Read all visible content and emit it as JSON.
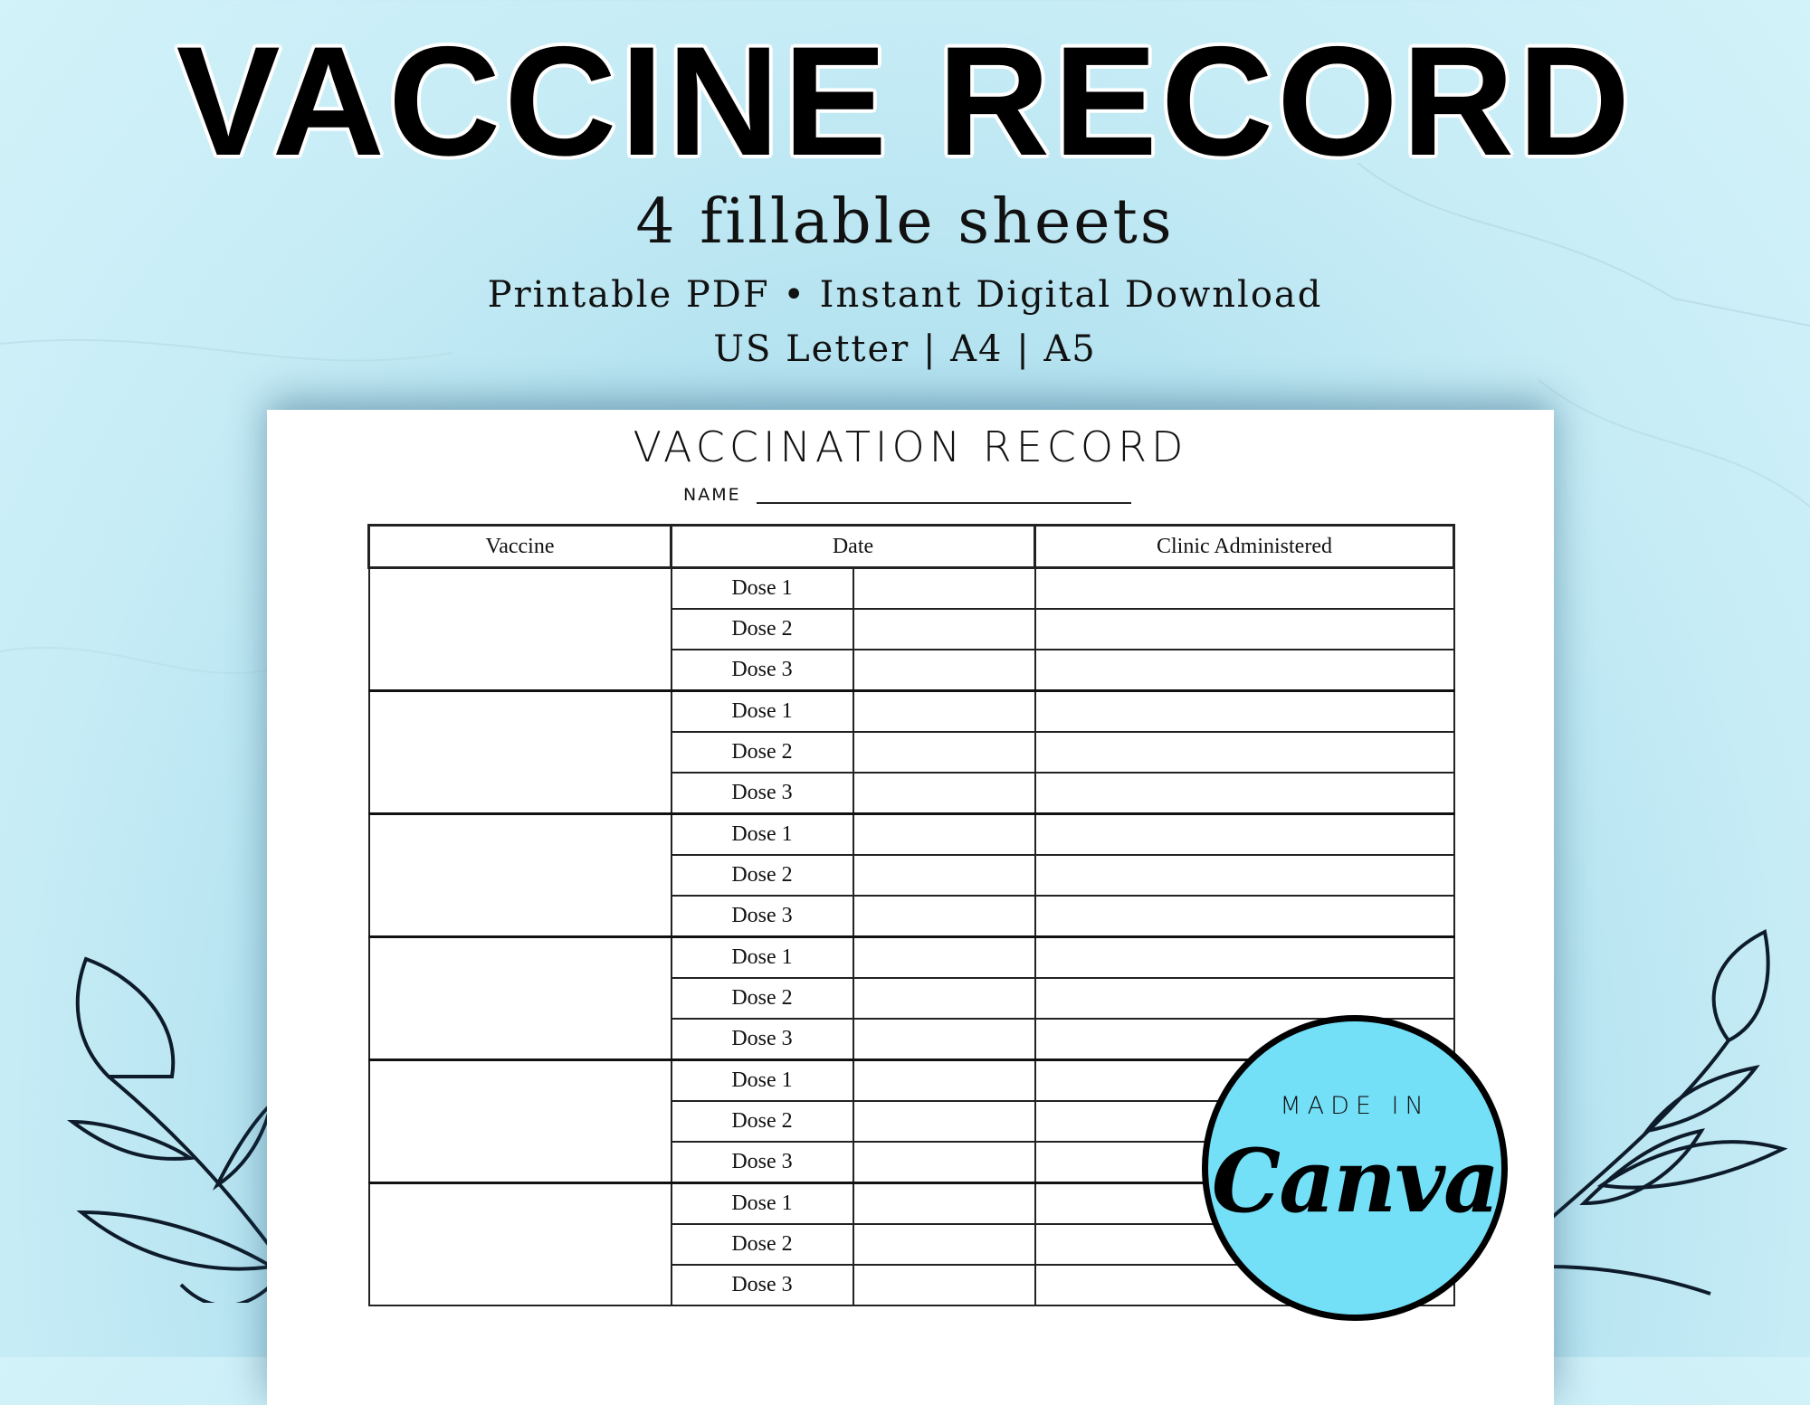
{
  "banner": {
    "title": "VACCINE RECORD",
    "subtitle": "4 fillable sheets",
    "formats_line": "Printable PDF • Instant Digital Download",
    "sizes_line": "US Letter | A4 | A5"
  },
  "sheet": {
    "title": "VACCINATION RECORD",
    "name_label": "NAME",
    "columns": [
      "Vaccine",
      "Date",
      "Clinic Administered"
    ],
    "groups": 6,
    "doses": [
      "Dose 1",
      "Dose 2",
      "Dose 3"
    ]
  },
  "badge": {
    "made_in": "MADE IN",
    "brand": "Canva",
    "color": "#74e0f7"
  },
  "colors": {
    "background": "#c6ecf6",
    "ink": "#111111"
  }
}
